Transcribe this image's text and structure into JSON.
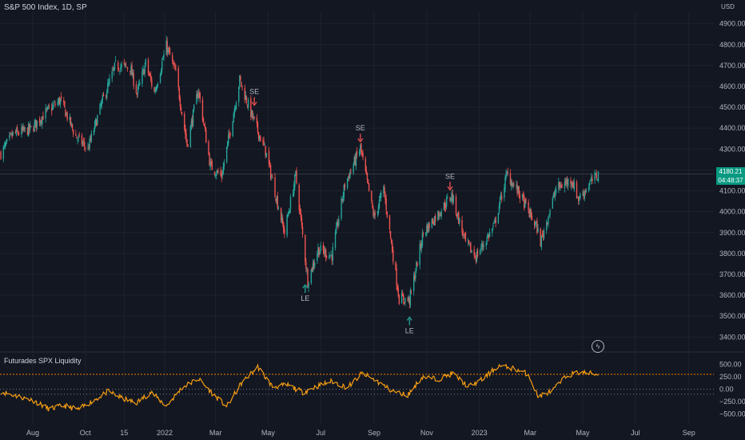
{
  "header": {
    "symbol_title": "S&P 500 Index, 1D, SP",
    "currency": "USD"
  },
  "price_tag": {
    "price": "4180.21",
    "countdown": "04:48:37",
    "color": "#089981"
  },
  "indicator": {
    "title": "Futurades SPX Liquidity",
    "line_color": "#f59d12",
    "upper_level_color": "#f57c00"
  },
  "colors": {
    "background": "#131722",
    "up": "#26a69a",
    "down": "#ef5350"
  },
  "icons": [
    "lightning-icon"
  ],
  "chart_data": [
    {
      "type": "candlestick",
      "title": "S&P 500 Index, 1D, SP",
      "ylim": [
        3340,
        4960
      ],
      "y_ticks": [
        "4900.00",
        "4800.00",
        "4700.00",
        "4600.00",
        "4500.00",
        "4400.00",
        "4300.00",
        "4200.00",
        "4100.00",
        "4000.00",
        "3900.00",
        "3800.00",
        "3700.00",
        "3600.00",
        "3500.00",
        "3400.00"
      ],
      "x_ticks": [
        "Aug",
        "Oct",
        "15",
        "2022",
        "Mar",
        "May",
        "Jul",
        "Sep",
        "Nov",
        "2023",
        "Mar",
        "May",
        "Jul",
        "Sep"
      ],
      "x_tick_dates": [
        "2021-08-01",
        "2021-10-01",
        "2021-11-15",
        "2022-01-01",
        "2022-03-01",
        "2022-05-01",
        "2022-07-01",
        "2022-09-01",
        "2022-11-01",
        "2023-01-01",
        "2023-03-01",
        "2023-05-01",
        "2023-07-01",
        "2023-09-01"
      ],
      "x_range": [
        "2021-06-24",
        "2023-09-30"
      ],
      "current_price": 4180.21,
      "close_path": [
        {
          "date": "2021-06-25",
          "close": 4280
        },
        {
          "date": "2021-07-09",
          "close": 4370
        },
        {
          "date": "2021-07-30",
          "close": 4395
        },
        {
          "date": "2021-08-15",
          "close": 4470
        },
        {
          "date": "2021-09-02",
          "close": 4535
        },
        {
          "date": "2021-09-20",
          "close": 4360
        },
        {
          "date": "2021-10-04",
          "close": 4300
        },
        {
          "date": "2021-10-20",
          "close": 4520
        },
        {
          "date": "2021-11-05",
          "close": 4700
        },
        {
          "date": "2021-11-22",
          "close": 4690
        },
        {
          "date": "2021-11-30",
          "close": 4565
        },
        {
          "date": "2021-12-10",
          "close": 4710
        },
        {
          "date": "2021-12-20",
          "close": 4570
        },
        {
          "date": "2022-01-03",
          "close": 4795
        },
        {
          "date": "2022-01-14",
          "close": 4660
        },
        {
          "date": "2022-01-27",
          "close": 4320
        },
        {
          "date": "2022-02-09",
          "close": 4585
        },
        {
          "date": "2022-02-23",
          "close": 4220
        },
        {
          "date": "2022-03-08",
          "close": 4170
        },
        {
          "date": "2022-03-29",
          "close": 4630
        },
        {
          "date": "2022-04-13",
          "close": 4450
        },
        {
          "date": "2022-04-28",
          "close": 4290
        },
        {
          "date": "2022-05-20",
          "close": 3900
        },
        {
          "date": "2022-06-02",
          "close": 4175
        },
        {
          "date": "2022-06-16",
          "close": 3670
        },
        {
          "date": "2022-06-28",
          "close": 3820
        },
        {
          "date": "2022-07-14",
          "close": 3790
        },
        {
          "date": "2022-07-29",
          "close": 4130
        },
        {
          "date": "2022-08-16",
          "close": 4305
        },
        {
          "date": "2022-09-01",
          "close": 3970
        },
        {
          "date": "2022-09-12",
          "close": 4110
        },
        {
          "date": "2022-09-30",
          "close": 3585
        },
        {
          "date": "2022-10-12",
          "close": 3577
        },
        {
          "date": "2022-10-28",
          "close": 3900
        },
        {
          "date": "2022-11-15",
          "close": 3995
        },
        {
          "date": "2022-11-30",
          "close": 4080
        },
        {
          "date": "2022-12-16",
          "close": 3850
        },
        {
          "date": "2022-12-28",
          "close": 3785
        },
        {
          "date": "2023-01-18",
          "close": 3930
        },
        {
          "date": "2023-02-02",
          "close": 4180
        },
        {
          "date": "2023-02-16",
          "close": 4090
        },
        {
          "date": "2023-03-09",
          "close": 3920
        },
        {
          "date": "2023-03-13",
          "close": 3855
        },
        {
          "date": "2023-03-31",
          "close": 4110
        },
        {
          "date": "2023-04-18",
          "close": 4155
        },
        {
          "date": "2023-04-26",
          "close": 4060
        },
        {
          "date": "2023-05-10",
          "close": 4140
        },
        {
          "date": "2023-05-19",
          "close": 4180
        }
      ],
      "annotations": [
        {
          "text": "SE",
          "date": "2022-04-15",
          "price": 4510,
          "direction": "down"
        },
        {
          "text": "LE",
          "date": "2022-06-13",
          "price": 3650,
          "direction": "up"
        },
        {
          "text": "SE",
          "date": "2022-08-16",
          "price": 4335,
          "direction": "down"
        },
        {
          "text": "LE",
          "date": "2022-10-12",
          "price": 3495,
          "direction": "up"
        },
        {
          "text": "SE",
          "date": "2022-11-28",
          "price": 4105,
          "direction": "down"
        }
      ]
    },
    {
      "type": "line",
      "title": "Futurades SPX Liquidity",
      "ylim": [
        -700,
        700
      ],
      "y_ticks": [
        "500.00",
        "250.00",
        "0.00",
        "−250.00",
        "−500.00"
      ],
      "y_tick_values": [
        500,
        250,
        0,
        -250,
        -500
      ],
      "levels": [
        300,
        0,
        -100
      ],
      "points": [
        {
          "date": "2021-06-25",
          "value": -50
        },
        {
          "date": "2021-07-12",
          "value": -130
        },
        {
          "date": "2021-08-02",
          "value": -230
        },
        {
          "date": "2021-08-20",
          "value": -400
        },
        {
          "date": "2021-09-06",
          "value": -330
        },
        {
          "date": "2021-09-23",
          "value": -410
        },
        {
          "date": "2021-10-11",
          "value": -220
        },
        {
          "date": "2021-10-28",
          "value": -40
        },
        {
          "date": "2021-11-12",
          "value": -180
        },
        {
          "date": "2021-11-29",
          "value": -280
        },
        {
          "date": "2021-12-16",
          "value": -60
        },
        {
          "date": "2022-01-03",
          "value": -340
        },
        {
          "date": "2022-01-21",
          "value": 30
        },
        {
          "date": "2022-02-09",
          "value": 210
        },
        {
          "date": "2022-02-25",
          "value": -80
        },
        {
          "date": "2022-03-14",
          "value": -350
        },
        {
          "date": "2022-03-31",
          "value": 120
        },
        {
          "date": "2022-04-19",
          "value": 450
        },
        {
          "date": "2022-05-06",
          "value": 50
        },
        {
          "date": "2022-05-24",
          "value": 80
        },
        {
          "date": "2022-06-10",
          "value": -60
        },
        {
          "date": "2022-06-27",
          "value": 60
        },
        {
          "date": "2022-07-14",
          "value": 160
        },
        {
          "date": "2022-08-01",
          "value": 30
        },
        {
          "date": "2022-08-18",
          "value": 320
        },
        {
          "date": "2022-09-05",
          "value": 150
        },
        {
          "date": "2022-09-22",
          "value": -40
        },
        {
          "date": "2022-10-10",
          "value": -120
        },
        {
          "date": "2022-10-27",
          "value": 250
        },
        {
          "date": "2022-11-14",
          "value": 200
        },
        {
          "date": "2022-12-01",
          "value": 320
        },
        {
          "date": "2022-12-19",
          "value": 50
        },
        {
          "date": "2023-01-05",
          "value": 200
        },
        {
          "date": "2023-01-23",
          "value": 470
        },
        {
          "date": "2023-02-09",
          "value": 420
        },
        {
          "date": "2023-02-27",
          "value": 300
        },
        {
          "date": "2023-03-10",
          "value": -150
        },
        {
          "date": "2023-03-27",
          "value": -30
        },
        {
          "date": "2023-04-13",
          "value": 280
        },
        {
          "date": "2023-04-28",
          "value": 340
        },
        {
          "date": "2023-05-19",
          "value": 300
        }
      ]
    }
  ]
}
